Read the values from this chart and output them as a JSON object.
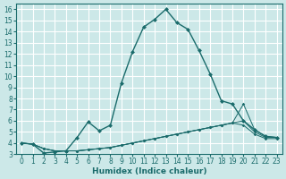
{
  "xlabel": "Humidex (Indice chaleur)",
  "bg_color": "#cce8e8",
  "grid_color": "#ffffff",
  "line_color": "#1a6b6b",
  "xlim": [
    -0.5,
    23.5
  ],
  "ylim": [
    3,
    16.5
  ],
  "x_ticks": [
    0,
    1,
    2,
    3,
    4,
    5,
    6,
    7,
    8,
    9,
    10,
    11,
    12,
    13,
    14,
    15,
    16,
    17,
    18,
    19,
    20,
    21,
    22,
    23
  ],
  "y_ticks": [
    3,
    4,
    5,
    6,
    7,
    8,
    9,
    10,
    11,
    12,
    13,
    14,
    15,
    16
  ],
  "main_x": [
    0,
    1,
    2,
    3,
    4,
    5,
    6,
    7,
    8,
    9,
    10,
    11,
    12,
    13,
    14,
    15,
    16,
    17,
    18,
    19,
    20,
    21,
    22,
    23
  ],
  "main_y": [
    4.0,
    3.9,
    3.1,
    3.2,
    3.3,
    4.5,
    5.9,
    5.1,
    5.6,
    9.4,
    12.2,
    14.4,
    15.1,
    16.0,
    14.8,
    14.2,
    12.3,
    10.2,
    7.8,
    7.5,
    6.0,
    5.2,
    4.6,
    4.5
  ],
  "flat_series": [
    {
      "x": [
        0,
        1,
        2,
        3,
        4,
        5,
        6,
        7,
        8,
        9,
        10,
        11,
        12,
        13,
        14,
        15,
        16,
        17,
        18,
        19,
        20,
        21,
        22,
        23
      ],
      "y": [
        4.0,
        3.9,
        3.5,
        3.3,
        3.3,
        3.3,
        3.4,
        3.5,
        3.6,
        3.8,
        4.0,
        4.2,
        4.4,
        4.6,
        4.8,
        5.0,
        5.2,
        5.4,
        5.6,
        5.8,
        7.5,
        5.2,
        4.6,
        4.5
      ]
    },
    {
      "x": [
        0,
        1,
        2,
        3,
        4,
        5,
        6,
        7,
        8,
        9,
        10,
        11,
        12,
        13,
        14,
        15,
        16,
        17,
        18,
        19,
        20,
        21,
        22,
        23
      ],
      "y": [
        4.0,
        3.9,
        3.5,
        3.3,
        3.3,
        3.3,
        3.4,
        3.5,
        3.6,
        3.8,
        4.0,
        4.2,
        4.4,
        4.6,
        4.8,
        5.0,
        5.2,
        5.4,
        5.6,
        5.8,
        6.0,
        5.0,
        4.5,
        4.5
      ]
    },
    {
      "x": [
        0,
        1,
        2,
        3,
        4,
        5,
        6,
        7,
        8,
        9,
        10,
        11,
        12,
        13,
        14,
        15,
        16,
        17,
        18,
        19,
        20,
        21,
        22,
        23
      ],
      "y": [
        4.0,
        3.9,
        3.5,
        3.3,
        3.3,
        3.3,
        3.4,
        3.5,
        3.6,
        3.8,
        4.0,
        4.2,
        4.4,
        4.6,
        4.8,
        5.0,
        5.2,
        5.4,
        5.6,
        5.8,
        5.6,
        4.8,
        4.4,
        4.4
      ]
    }
  ]
}
